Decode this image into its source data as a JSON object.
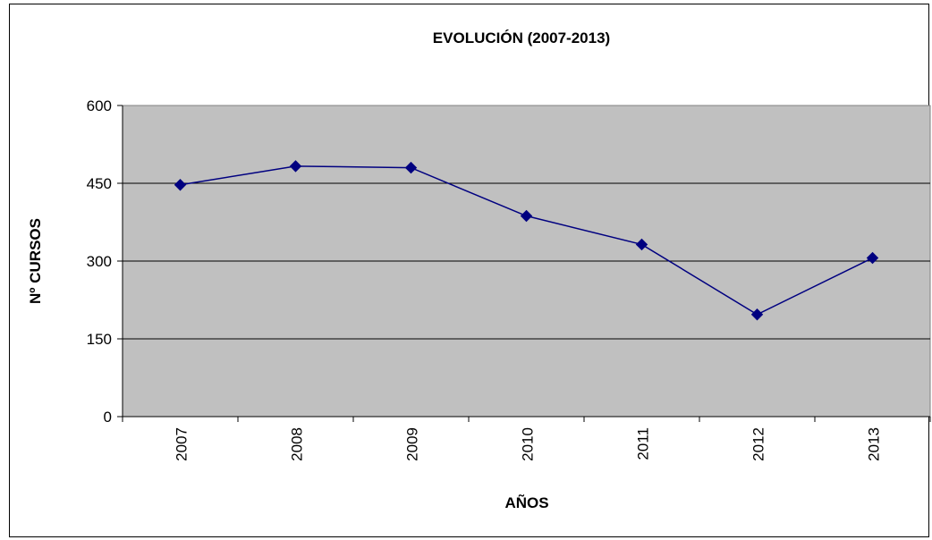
{
  "chart_data": {
    "type": "line",
    "title": "EVOLUCIÓN (2007-2013)",
    "xlabel": "AÑOS",
    "ylabel": "Nº CURSOS",
    "categories": [
      "2007",
      "2008",
      "2009",
      "2010",
      "2011",
      "2012",
      "2013"
    ],
    "series": [
      {
        "values": [
          447,
          483,
          480,
          387,
          332,
          197,
          306
        ]
      }
    ],
    "ylim": [
      0,
      600
    ],
    "yticks": [
      "0",
      "150",
      "300",
      "450",
      "600"
    ],
    "grid": true,
    "plot_background": "#c0c0c0",
    "line_color": "#000080",
    "legend": "none"
  }
}
